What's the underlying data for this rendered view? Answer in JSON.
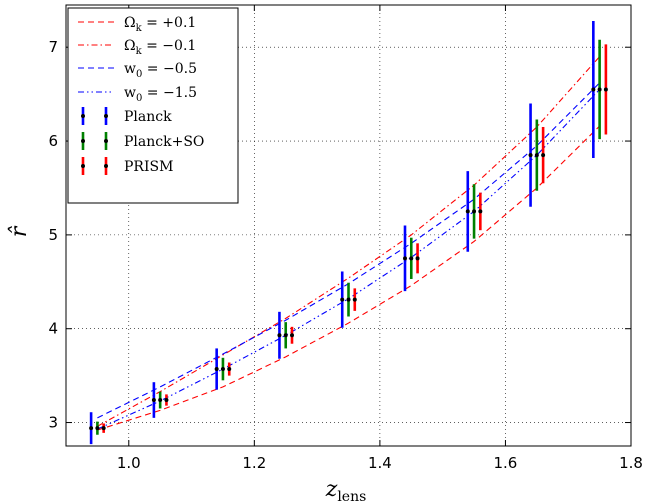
{
  "chart_data": {
    "type": "line",
    "xlabel": "z_lens",
    "ylabel": "r̂",
    "xlim": [
      0.9,
      1.8
    ],
    "ylim": [
      2.75,
      7.45
    ],
    "x_ticks": [
      "1.0",
      "1.2",
      "1.4",
      "1.6",
      "1.8"
    ],
    "y_ticks": [
      "3",
      "4",
      "5",
      "6",
      "7"
    ],
    "grid": true,
    "legend_position": "top-left",
    "lines": [
      {
        "label": "Ω_k = +0.1",
        "color": "#ff0000",
        "style": "dashed",
        "x": [
          0.95,
          1.05,
          1.15,
          1.25,
          1.35,
          1.45,
          1.55,
          1.65,
          1.75
        ],
        "y": [
          2.92,
          3.13,
          3.38,
          3.7,
          4.06,
          4.46,
          4.93,
          5.5,
          6.16
        ]
      },
      {
        "label": "Ω_k = −0.1",
        "color": "#ff0000",
        "style": "dashdot",
        "x": [
          0.95,
          1.05,
          1.15,
          1.25,
          1.35,
          1.45,
          1.55,
          1.65,
          1.75
        ],
        "y": [
          2.96,
          3.33,
          3.72,
          4.11,
          4.54,
          5.0,
          5.53,
          6.15,
          6.9
        ]
      },
      {
        "label": "w_0 = −0.5",
        "color": "#0000ff",
        "style": "dashed",
        "x": [
          0.95,
          1.05,
          1.15,
          1.25,
          1.35,
          1.45,
          1.55,
          1.65,
          1.75
        ],
        "y": [
          3.05,
          3.38,
          3.73,
          4.09,
          4.48,
          4.91,
          5.38,
          5.95,
          6.62
        ]
      },
      {
        "label": "w_0 = −1.5",
        "color": "#0000ff",
        "style": "dashdotdot",
        "x": [
          0.95,
          1.05,
          1.15,
          1.25,
          1.35,
          1.45,
          1.55,
          1.65,
          1.75
        ],
        "y": [
          2.93,
          3.23,
          3.57,
          3.93,
          4.32,
          4.76,
          5.25,
          5.85,
          6.55
        ]
      }
    ],
    "errorbar_series": [
      {
        "label": "Planck",
        "color": "#0000ff",
        "x_offset": -0.01,
        "x": [
          0.95,
          1.05,
          1.15,
          1.25,
          1.35,
          1.45,
          1.55,
          1.65,
          1.75
        ],
        "y": [
          2.94,
          3.24,
          3.57,
          3.93,
          4.31,
          4.75,
          5.25,
          5.85,
          6.55
        ],
        "err": [
          0.17,
          0.19,
          0.22,
          0.25,
          0.3,
          0.35,
          0.43,
          0.55,
          0.73
        ]
      },
      {
        "label": "Planck+SO",
        "color": "#008000",
        "x_offset": 0.0,
        "x": [
          0.95,
          1.05,
          1.15,
          1.25,
          1.35,
          1.45,
          1.55,
          1.65,
          1.75
        ],
        "y": [
          2.94,
          3.24,
          3.57,
          3.93,
          4.31,
          4.75,
          5.25,
          5.85,
          6.55
        ],
        "err": [
          0.07,
          0.09,
          0.12,
          0.14,
          0.18,
          0.22,
          0.29,
          0.38,
          0.53
        ]
      },
      {
        "label": "PRISM",
        "color": "#ff0000",
        "x_offset": 0.01,
        "x": [
          0.95,
          1.05,
          1.15,
          1.25,
          1.35,
          1.45,
          1.55,
          1.65,
          1.75
        ],
        "y": [
          2.94,
          3.24,
          3.57,
          3.93,
          4.31,
          4.75,
          5.25,
          5.85,
          6.55
        ],
        "err": [
          0.05,
          0.06,
          0.07,
          0.09,
          0.12,
          0.16,
          0.2,
          0.3,
          0.48
        ]
      }
    ]
  }
}
